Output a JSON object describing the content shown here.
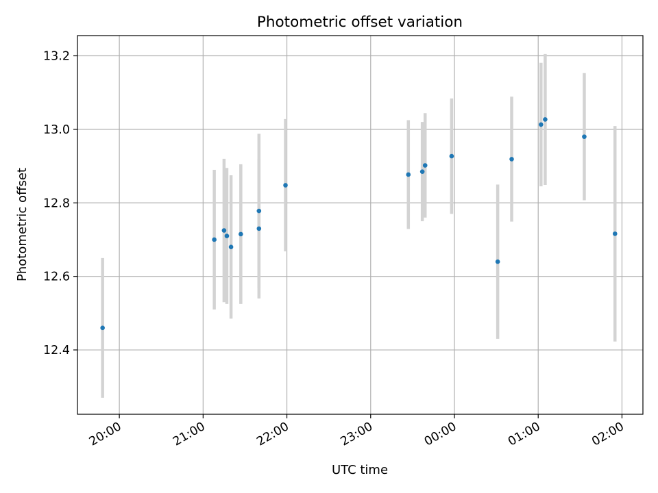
{
  "chart_data": {
    "type": "scatter",
    "title": "Photometric offset variation",
    "xlabel": "UTC time",
    "ylabel": "Photometric offset",
    "x_axis": "time",
    "x_tick_labels": [
      "20:00",
      "21:00",
      "22:00",
      "23:00",
      "00:00",
      "01:00",
      "02:00"
    ],
    "y_tick_labels": [
      "12.4",
      "12.6",
      "12.8",
      "13.0",
      "13.2"
    ],
    "y_ticks": [
      12.4,
      12.6,
      12.8,
      13.0,
      13.2
    ],
    "xlim": [
      "19:30",
      "02:15"
    ],
    "ylim": [
      12.225,
      13.255
    ],
    "grid": true,
    "marker_color": "#1f77b4",
    "errorbar_color": "#d3d3d3",
    "points": [
      {
        "t": "19:48",
        "y": 12.46,
        "err": 0.19
      },
      {
        "t": "21:08",
        "y": 12.7,
        "err": 0.19
      },
      {
        "t": "21:15",
        "y": 12.725,
        "err": 0.195
      },
      {
        "t": "21:17",
        "y": 12.71,
        "err": 0.185
      },
      {
        "t": "21:20",
        "y": 12.68,
        "err": 0.195
      },
      {
        "t": "21:27",
        "y": 12.715,
        "err": 0.19
      },
      {
        "t": "21:40",
        "y": 12.778,
        "err": 0.21
      },
      {
        "t": "21:40",
        "y": 12.73,
        "err": 0.19
      },
      {
        "t": "21:59",
        "y": 12.848,
        "err": 0.18
      },
      {
        "t": "23:27",
        "y": 12.877,
        "err": 0.148
      },
      {
        "t": "23:37",
        "y": 12.885,
        "err": 0.135
      },
      {
        "t": "23:39",
        "y": 12.902,
        "err": 0.142
      },
      {
        "t": "23:58",
        "y": 12.927,
        "err": 0.157
      },
      {
        "t": "00:31",
        "y": 12.64,
        "err": 0.21
      },
      {
        "t": "00:41",
        "y": 12.919,
        "err": 0.17
      },
      {
        "t": "01:02",
        "y": 13.013,
        "err": 0.168
      },
      {
        "t": "01:05",
        "y": 13.027,
        "err": 0.178
      },
      {
        "t": "01:33",
        "y": 12.98,
        "err": 0.173
      },
      {
        "t": "01:55",
        "y": 12.716,
        "err": 0.293
      }
    ]
  }
}
